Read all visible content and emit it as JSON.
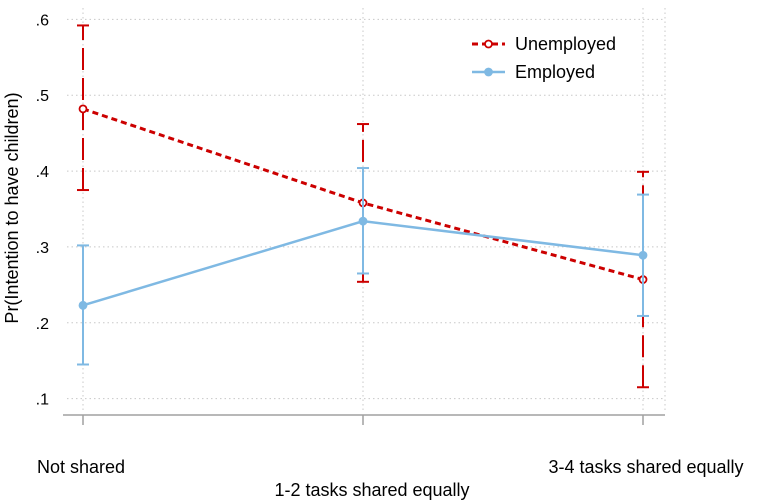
{
  "chart_data": {
    "type": "line",
    "title": "",
    "xlabel": "",
    "ylabel": "Pr(Intention to have children)",
    "categories": [
      "Not shared",
      "1-2 tasks shared equally",
      "3-4 tasks shared equally"
    ],
    "yticks": [
      ".1",
      ".2",
      ".3",
      ".4",
      ".5",
      ".6"
    ],
    "yticks_values": [
      0.1,
      0.2,
      0.3,
      0.4,
      0.5,
      0.6
    ],
    "ylim": [
      0.085,
      0.615
    ],
    "grid": true,
    "legend_position": "top-right",
    "series": [
      {
        "name": "Unemployed",
        "color": "#cc0000",
        "line_style": "dashed",
        "marker": "hollow-circle",
        "values": [
          0.482,
          0.358,
          0.257
        ],
        "ci_low": [
          0.375,
          0.254,
          0.115
        ],
        "ci_high": [
          0.592,
          0.462,
          0.399
        ]
      },
      {
        "name": "Employed",
        "color": "#7fb9e3",
        "line_style": "solid",
        "marker": "filled-circle",
        "values": [
          0.223,
          0.334,
          0.289
        ],
        "ci_low": [
          0.145,
          0.265,
          0.209
        ],
        "ci_high": [
          0.302,
          0.404,
          0.369
        ]
      }
    ]
  }
}
